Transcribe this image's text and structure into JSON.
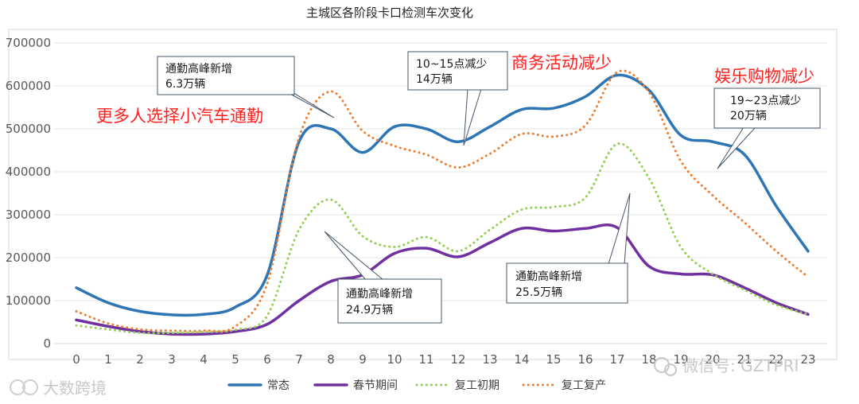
{
  "chart_data": {
    "type": "line",
    "title": "主城区各阶段卡口检测车次变化",
    "x": [
      0,
      1,
      2,
      3,
      4,
      5,
      6,
      7,
      8,
      9,
      10,
      11,
      12,
      13,
      14,
      15,
      16,
      17,
      18,
      19,
      20,
      21,
      22,
      23
    ],
    "xlabel": "",
    "ylabel": "",
    "ylim": [
      0,
      700000
    ],
    "yticks": [
      0,
      100000,
      200000,
      300000,
      400000,
      500000,
      600000,
      700000
    ],
    "grid": true,
    "legend": "bottom",
    "series": [
      {
        "name": "常态",
        "color": "#2e75b6",
        "style": "solid",
        "values": [
          130000,
          95000,
          75000,
          67000,
          68000,
          85000,
          160000,
          470000,
          500000,
          445000,
          505000,
          500000,
          470000,
          505000,
          545000,
          548000,
          575000,
          625000,
          590000,
          485000,
          470000,
          440000,
          320000,
          215000
        ]
      },
      {
        "name": "春节期间",
        "color": "#7030a0",
        "style": "solid",
        "values": [
          55000,
          40000,
          28000,
          22000,
          22000,
          28000,
          45000,
          100000,
          145000,
          160000,
          210000,
          222000,
          202000,
          235000,
          268000,
          262000,
          268000,
          270000,
          180000,
          162000,
          160000,
          130000,
          95000,
          68000
        ]
      },
      {
        "name": "复工初期",
        "color": "#92d050",
        "style": "dotted",
        "values": [
          42000,
          33000,
          25000,
          25000,
          27000,
          32000,
          65000,
          265000,
          335000,
          250000,
          225000,
          248000,
          215000,
          265000,
          312000,
          318000,
          340000,
          465000,
          385000,
          225000,
          162000,
          125000,
          90000,
          68000
        ]
      },
      {
        "name": "复工复产",
        "color": "#ed7d31",
        "style": "dotted",
        "values": [
          75000,
          47000,
          33000,
          30000,
          30000,
          40000,
          140000,
          480000,
          587000,
          495000,
          460000,
          440000,
          410000,
          442000,
          488000,
          482000,
          508000,
          632000,
          585000,
          425000,
          345000,
          282000,
          215000,
          155000
        ]
      }
    ],
    "annotations": [
      {
        "kind": "callout",
        "lines": [
          "通勤高峰新增",
          "6.3万辆"
        ]
      },
      {
        "kind": "callout",
        "lines": [
          "10~15点减少",
          "14万辆"
        ]
      },
      {
        "kind": "callout",
        "lines": [
          "19~23点减少",
          "20万辆"
        ]
      },
      {
        "kind": "callout",
        "lines": [
          "通勤高峰新增",
          "24.9万辆"
        ]
      },
      {
        "kind": "callout",
        "lines": [
          "通勤高峰新增",
          "25.5万辆"
        ]
      },
      {
        "kind": "red-text",
        "text": "更多人选择小汽车通勤"
      },
      {
        "kind": "red-text",
        "text": "商务活动减少"
      },
      {
        "kind": "red-text",
        "text": "娱乐购物减少"
      }
    ]
  },
  "watermarks": {
    "left": "大数跨境",
    "right": "微信号: GZTPRI"
  },
  "colors": {
    "axis": "#d9d9d9",
    "annotation_red": "#ff2020",
    "callout_border": "#44546a"
  }
}
